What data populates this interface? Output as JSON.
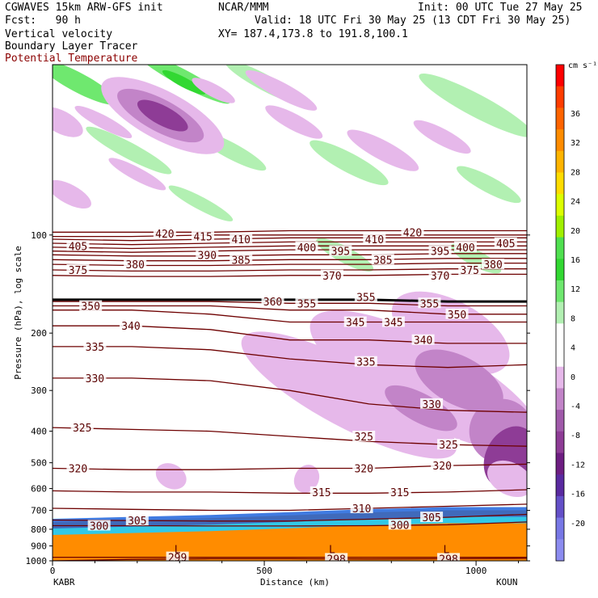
{
  "header": {
    "model": "CGWAVES 15km ARW-GFS init",
    "org": "NCAR/MMM",
    "init": "Init: 00 UTC Tue 27 May 25",
    "fcst": "Fcst:   90 h",
    "valid": "Valid: 18 UTC Fri 30 May 25 (13 CDT Fri 30 May 25)",
    "field1": "Vertical velocity",
    "xy": "XY= 187.4,173.8 to 191.8,100.1",
    "field2": "Boundary Layer Tracer",
    "field3": "Potential Temperature",
    "field3_color": "#8b0000"
  },
  "axes": {
    "ylabel": "Pressure (hPa), log scale",
    "xlabel": "Distance (km)",
    "left_station": "KABR",
    "right_station": "KOUN"
  },
  "colorbar": {
    "unit": "cm s⁻¹",
    "labels": [
      "36",
      "32",
      "28",
      "24",
      "20",
      "16",
      "12",
      "8",
      "4",
      "0",
      "-4",
      "-8",
      "-12",
      "-16",
      "-20"
    ]
  },
  "chart_data": {
    "type": "contour-cross-section",
    "x": {
      "label": "Distance (km)",
      "range": [
        0,
        1120
      ],
      "ticks": [
        0,
        500,
        1000
      ]
    },
    "y": {
      "label": "Pressure (hPa), log scale",
      "scale": "log",
      "reversed": true,
      "range": [
        1000,
        30
      ],
      "ticks": [
        100,
        200,
        300,
        400,
        500,
        600,
        700,
        800,
        900,
        1000
      ]
    },
    "theta_contours": [
      {
        "value": 298,
        "p": [
          1000,
          990,
          985,
          985,
          987,
          985,
          983
        ]
      },
      {
        "value": 299,
        "p": [
          975,
          975,
          975,
          975,
          975,
          975,
          975
        ]
      },
      {
        "value": 300,
        "p": [
          780,
          780,
          782,
          782,
          780,
          775,
          760
        ]
      },
      {
        "value": 305,
        "p": [
          750,
          752,
          755,
          755,
          745,
          735,
          720
        ]
      },
      {
        "value": 310,
        "p": [
          690,
          695,
          700,
          700,
          690,
          680,
          670
        ]
      },
      {
        "value": 315,
        "p": [
          610,
          615,
          615,
          620,
          620,
          615,
          605
        ]
      },
      {
        "value": 320,
        "p": [
          520,
          525,
          525,
          520,
          520,
          510,
          505
        ]
      },
      {
        "value": 325,
        "p": [
          390,
          395,
          400,
          415,
          430,
          440,
          445
        ]
      },
      {
        "value": 330,
        "p": [
          275,
          275,
          280,
          300,
          330,
          345,
          350
        ]
      },
      {
        "value": 335,
        "p": [
          220,
          220,
          225,
          240,
          250,
          255,
          250
        ]
      },
      {
        "value": 340,
        "p": [
          190,
          190,
          195,
          210,
          210,
          215,
          215
        ]
      },
      {
        "value": 345,
        "p": [
          170,
          170,
          175,
          185,
          185,
          185,
          185
        ]
      },
      {
        "value": 350,
        "p": [
          165,
          165,
          165,
          170,
          170,
          175,
          175
        ]
      },
      {
        "value": 355,
        "p": [
          160,
          160,
          160,
          162,
          162,
          165,
          165
        ]
      },
      {
        "value": 360,
        "p": [
          158,
          158,
          158,
          158,
          158,
          160,
          160
        ]
      },
      {
        "value": 370,
        "p": [
          133,
          134,
          134,
          133,
          133,
          132,
          132
        ]
      },
      {
        "value": 375,
        "p": [
          128,
          129,
          129,
          128,
          128,
          127,
          127
        ]
      },
      {
        "value": 380,
        "p": [
          123,
          124,
          124,
          123,
          123,
          122,
          122
        ]
      },
      {
        "value": 385,
        "p": [
          119,
          120,
          120,
          119,
          119,
          118,
          118
        ]
      },
      {
        "value": 390,
        "p": [
          115,
          116,
          116,
          115,
          115,
          114,
          114
        ]
      },
      {
        "value": 395,
        "p": [
          112,
          113,
          112,
          111,
          111,
          111,
          111
        ]
      },
      {
        "value": 400,
        "p": [
          109,
          110,
          109,
          108,
          108,
          108,
          108
        ]
      },
      {
        "value": 405,
        "p": [
          106,
          107,
          106,
          105,
          105,
          105,
          105
        ]
      },
      {
        "value": 410,
        "p": [
          103,
          104,
          103,
          102,
          102,
          102,
          102
        ]
      },
      {
        "value": 415,
        "p": [
          101,
          101,
          100,
          100,
          100,
          100,
          100
        ]
      },
      {
        "value": 420,
        "p": [
          98,
          98,
          98,
          97,
          97,
          97,
          97
        ]
      }
    ],
    "theta_x_km": [
      0,
      187,
      373,
      560,
      747,
      933,
      1120
    ],
    "theta_labels": [
      {
        "text": "405",
        "x": 60,
        "p": 108
      },
      {
        "text": "420",
        "x": 265,
        "p": 99
      },
      {
        "text": "415",
        "x": 355,
        "p": 101
      },
      {
        "text": "410",
        "x": 445,
        "p": 103
      },
      {
        "text": "400",
        "x": 600,
        "p": 109
      },
      {
        "text": "395",
        "x": 680,
        "p": 112
      },
      {
        "text": "410",
        "x": 760,
        "p": 103
      },
      {
        "text": "420",
        "x": 850,
        "p": 98
      },
      {
        "text": "395",
        "x": 915,
        "p": 112
      },
      {
        "text": "400",
        "x": 975,
        "p": 109
      },
      {
        "text": "405",
        "x": 1070,
        "p": 106
      },
      {
        "text": "375",
        "x": 60,
        "p": 128
      },
      {
        "text": "380",
        "x": 195,
        "p": 123
      },
      {
        "text": "390",
        "x": 365,
        "p": 115
      },
      {
        "text": "385",
        "x": 445,
        "p": 119
      },
      {
        "text": "370",
        "x": 660,
        "p": 133
      },
      {
        "text": "385",
        "x": 780,
        "p": 119
      },
      {
        "text": "370",
        "x": 915,
        "p": 133
      },
      {
        "text": "375",
        "x": 985,
        "p": 128
      },
      {
        "text": "380",
        "x": 1040,
        "p": 123
      },
      {
        "text": "355",
        "x": 740,
        "p": 155
      },
      {
        "text": "360",
        "x": 520,
        "p": 160
      },
      {
        "text": "350",
        "x": 90,
        "p": 165
      },
      {
        "text": "355",
        "x": 600,
        "p": 162
      },
      {
        "text": "355",
        "x": 890,
        "p": 162
      },
      {
        "text": "350",
        "x": 955,
        "p": 175
      },
      {
        "text": "340",
        "x": 185,
        "p": 190
      },
      {
        "text": "345",
        "x": 715,
        "p": 185
      },
      {
        "text": "345",
        "x": 805,
        "p": 185
      },
      {
        "text": "335",
        "x": 100,
        "p": 220
      },
      {
        "text": "340",
        "x": 875,
        "p": 210
      },
      {
        "text": "335",
        "x": 740,
        "p": 245
      },
      {
        "text": "330",
        "x": 100,
        "p": 275
      },
      {
        "text": "330",
        "x": 895,
        "p": 330
      },
      {
        "text": "325",
        "x": 70,
        "p": 390
      },
      {
        "text": "325",
        "x": 735,
        "p": 415
      },
      {
        "text": "325",
        "x": 935,
        "p": 440
      },
      {
        "text": "320",
        "x": 60,
        "p": 520
      },
      {
        "text": "320",
        "x": 735,
        "p": 520
      },
      {
        "text": "320",
        "x": 920,
        "p": 510
      },
      {
        "text": "315",
        "x": 635,
        "p": 615
      },
      {
        "text": "315",
        "x": 820,
        "p": 615
      },
      {
        "text": "310",
        "x": 730,
        "p": 690
      },
      {
        "text": "305",
        "x": 200,
        "p": 752
      },
      {
        "text": "305",
        "x": 895,
        "p": 735
      },
      {
        "text": "300",
        "x": 110,
        "p": 780
      },
      {
        "text": "300",
        "x": 820,
        "p": 775
      },
      {
        "text": "299",
        "x": 295,
        "p": 975
      },
      {
        "text": "298",
        "x": 670,
        "p": 985
      },
      {
        "text": "298",
        "x": 935,
        "p": 985
      }
    ],
    "low_markers": [
      {
        "x": 295,
        "p": 920
      },
      {
        "x": 660,
        "p": 920
      },
      {
        "x": 930,
        "p": 920
      }
    ],
    "w_regions": [
      {
        "cx": 60,
        "p": 34,
        "rx": 55,
        "ry": 12,
        "level": 8
      },
      {
        "cx": 310,
        "p": 33,
        "rx": 65,
        "ry": 10,
        "level": 8
      },
      {
        "cx": 310,
        "p": 34,
        "rx": 30,
        "ry": 6,
        "level": 12
      },
      {
        "cx": 500,
        "p": 34,
        "rx": 55,
        "ry": 10,
        "level": 4
      },
      {
        "cx": 180,
        "p": 55,
        "rx": 60,
        "ry": 10,
        "level": 4
      },
      {
        "cx": 420,
        "p": 55,
        "rx": 50,
        "ry": 10,
        "level": 4
      },
      {
        "cx": 700,
        "p": 60,
        "rx": 55,
        "ry": 12,
        "level": 4
      },
      {
        "cx": 1000,
        "p": 40,
        "rx": 80,
        "ry": 14,
        "level": 4
      },
      {
        "cx": 350,
        "p": 80,
        "rx": 45,
        "ry": 8,
        "level": 4
      },
      {
        "cx": 1030,
        "p": 70,
        "rx": 45,
        "ry": 10,
        "level": 4
      },
      {
        "cx": 690,
        "p": 115,
        "rx": 40,
        "ry": 10,
        "level": 4
      },
      {
        "cx": 1000,
        "p": 118,
        "rx": 35,
        "ry": 10,
        "level": 4
      },
      {
        "cx": 610,
        "p": 290,
        "rx": 14,
        "ry": 18,
        "level": 4
      },
      {
        "cx": 20,
        "p": 45,
        "rx": 30,
        "ry": 14,
        "level": -4
      },
      {
        "cx": 260,
        "p": 43,
        "rx": 85,
        "ry": 30,
        "level": -4
      },
      {
        "cx": 255,
        "p": 43,
        "rx": 60,
        "ry": 20,
        "level": -8
      },
      {
        "cx": 260,
        "p": 43,
        "rx": 35,
        "ry": 12,
        "level": -12
      },
      {
        "cx": 120,
        "p": 45,
        "rx": 40,
        "ry": 8,
        "level": -4
      },
      {
        "cx": 540,
        "p": 36,
        "rx": 50,
        "ry": 10,
        "level": -4
      },
      {
        "cx": 570,
        "p": 45,
        "rx": 40,
        "ry": 10,
        "level": -4
      },
      {
        "cx": 380,
        "p": 36,
        "rx": 30,
        "ry": 8,
        "level": -4
      },
      {
        "cx": 780,
        "p": 55,
        "rx": 50,
        "ry": 12,
        "level": -4
      },
      {
        "cx": 920,
        "p": 50,
        "rx": 40,
        "ry": 10,
        "level": -4
      },
      {
        "cx": 200,
        "p": 65,
        "rx": 40,
        "ry": 8,
        "level": -4
      },
      {
        "cx": 40,
        "p": 75,
        "rx": 30,
        "ry": 12,
        "level": -4
      },
      {
        "cx": 940,
        "p": 200,
        "rx": 80,
        "ry": 40,
        "level": -4
      },
      {
        "cx": 880,
        "p": 280,
        "rx": 160,
        "ry": 50,
        "level": -4
      },
      {
        "cx": 700,
        "p": 310,
        "rx": 150,
        "ry": 40,
        "level": -4
      },
      {
        "cx": 960,
        "p": 280,
        "rx": 60,
        "ry": 30,
        "level": -8
      },
      {
        "cx": 1060,
        "p": 400,
        "rx": 40,
        "ry": 40,
        "level": -8
      },
      {
        "cx": 870,
        "p": 340,
        "rx": 50,
        "ry": 18,
        "level": -8
      },
      {
        "cx": 1080,
        "p": 480,
        "rx": 30,
        "ry": 40,
        "level": -12
      },
      {
        "cx": 1080,
        "p": 560,
        "rx": 30,
        "ry": 20,
        "level": -4
      },
      {
        "cx": 600,
        "p": 560,
        "rx": 15,
        "ry": 18,
        "level": -4
      },
      {
        "cx": 280,
        "p": 550,
        "rx": 20,
        "ry": 15,
        "level": -4
      }
    ],
    "blt_layer": {
      "top_p": [
        760,
        750,
        740,
        725,
        710,
        700,
        700
      ],
      "bottom_p": 1000
    }
  }
}
